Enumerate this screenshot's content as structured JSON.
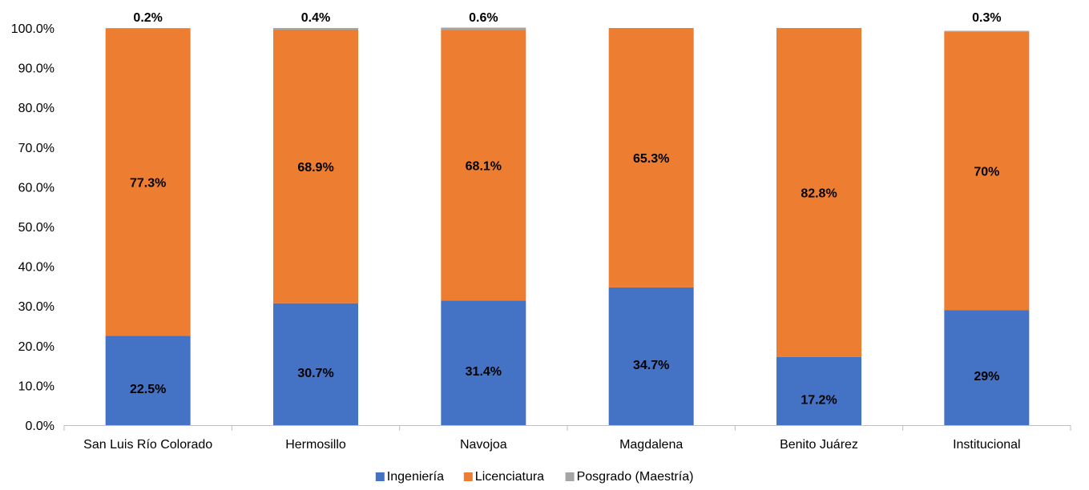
{
  "chart_data": {
    "type": "bar",
    "stacked": true,
    "categories": [
      "San Luis Río Colorado",
      "Hermosillo",
      "Navojoa",
      "Magdalena",
      "Benito Juárez",
      "Institucional"
    ],
    "series": [
      {
        "name": "Ingeniería",
        "color": "#4472C4",
        "values": [
          22.5,
          30.7,
          31.4,
          34.7,
          17.2,
          29
        ],
        "labels": [
          "22.5%",
          "30.7%",
          "31.4%",
          "34.7%",
          "17.2%",
          "29%"
        ]
      },
      {
        "name": "Licenciatura",
        "color": "#ED7D31",
        "values": [
          77.3,
          68.9,
          68.1,
          65.3,
          82.8,
          70
        ],
        "labels": [
          "77.3%",
          "68.9%",
          "68.1%",
          "65.3%",
          "82.8%",
          "70%"
        ]
      },
      {
        "name": "Posgrado (Maestría)",
        "color": "#A5A5A5",
        "values": [
          0.2,
          0.4,
          0.6,
          0,
          0,
          0.3
        ],
        "labels": [
          "0.2%",
          "0.4%",
          "0.6%",
          "",
          "",
          "0.3%"
        ]
      }
    ],
    "ylim": [
      0,
      100
    ],
    "yticks": [
      "0.0%",
      "10.0%",
      "20.0%",
      "30.0%",
      "40.0%",
      "50.0%",
      "60.0%",
      "70.0%",
      "80.0%",
      "90.0%",
      "100.0%"
    ],
    "grid": false,
    "legend": "bottom"
  }
}
